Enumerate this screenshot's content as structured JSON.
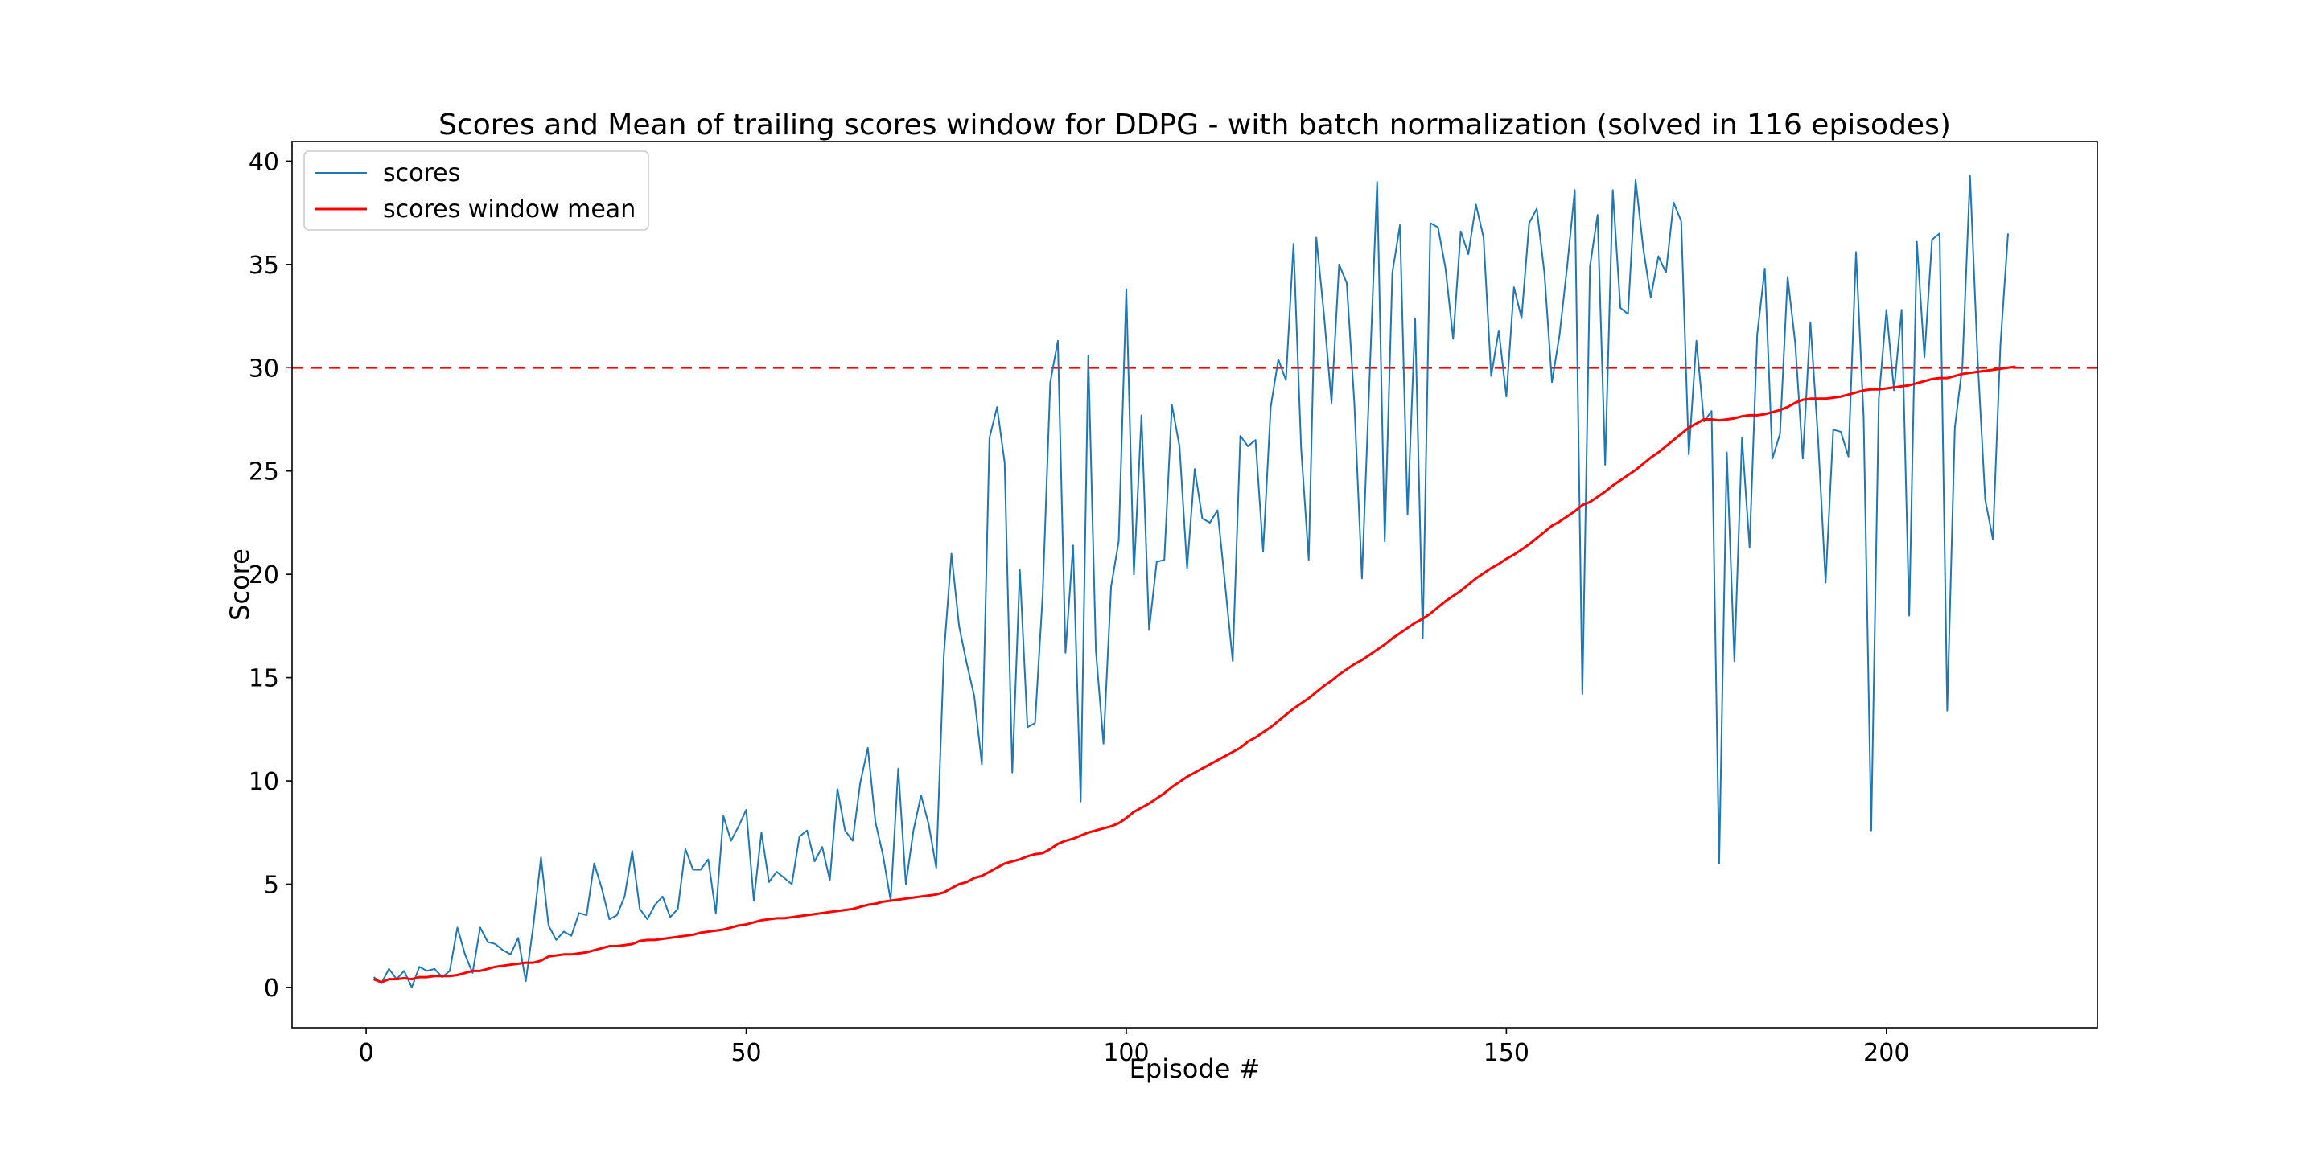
{
  "chart_data": {
    "type": "line",
    "title": "Scores and Mean of trailing scores window for DDPG - with batch normalization (solved in 116 episodes)",
    "xlabel": "Episode #",
    "ylabel": "Score",
    "xlim": [
      -9.75,
      227.75
    ],
    "ylim": [
      -1.95,
      40.95
    ],
    "x_ticks": [
      0,
      50,
      100,
      150,
      200
    ],
    "y_ticks": [
      0,
      5,
      10,
      15,
      20,
      25,
      30,
      35,
      40
    ],
    "grid": false,
    "legend_position": "top-left",
    "threshold": {
      "value": 30,
      "style": "dashed",
      "color": "#ff0000"
    },
    "series": [
      {
        "name": "scores",
        "color": "#1f77b4",
        "x_start": 1,
        "values": [
          0.5,
          0.2,
          0.9,
          0.4,
          0.8,
          0.0,
          1.0,
          0.8,
          0.9,
          0.5,
          0.8,
          2.9,
          1.6,
          0.7,
          2.9,
          2.2,
          2.1,
          1.8,
          1.6,
          2.4,
          0.3,
          3.0,
          6.3,
          3.0,
          2.3,
          2.7,
          2.5,
          3.6,
          3.5,
          6.0,
          4.8,
          3.3,
          3.5,
          4.4,
          6.6,
          3.8,
          3.3,
          4.0,
          4.4,
          3.4,
          3.8,
          6.7,
          5.7,
          5.7,
          6.2,
          3.6,
          8.3,
          7.1,
          7.8,
          8.6,
          4.2,
          7.5,
          5.1,
          5.6,
          5.3,
          5.0,
          7.3,
          7.6,
          6.1,
          6.8,
          5.2,
          9.6,
          7.6,
          7.1,
          9.9,
          11.6,
          8.0,
          6.4,
          4.2,
          10.6,
          5.0,
          7.6,
          9.3,
          7.9,
          5.8,
          16.1,
          21.0,
          17.5,
          15.7,
          14.1,
          10.8,
          26.6,
          28.1,
          25.4,
          10.4,
          20.2,
          12.6,
          12.8,
          19.0,
          29.3,
          31.3,
          16.2,
          21.4,
          9.0,
          30.6,
          16.3,
          11.8,
          19.4,
          21.6,
          33.8,
          20.0,
          27.7,
          17.3,
          20.6,
          20.7,
          28.2,
          26.2,
          20.3,
          25.1,
          22.7,
          22.5,
          23.1,
          19.5,
          15.8,
          26.7,
          26.2,
          26.5,
          21.1,
          28.1,
          30.4,
          29.4,
          36.0,
          26.1,
          20.7,
          36.3,
          32.6,
          28.3,
          35.0,
          34.1,
          28.3,
          19.8,
          29.5,
          39.0,
          21.6,
          34.6,
          36.9,
          22.9,
          32.4,
          16.9,
          37.0,
          36.8,
          34.8,
          31.4,
          36.6,
          35.5,
          37.9,
          36.3,
          29.6,
          31.8,
          28.6,
          33.9,
          32.4,
          37.0,
          37.7,
          34.6,
          29.3,
          31.6,
          34.9,
          38.6,
          14.2,
          34.9,
          37.4,
          25.3,
          38.6,
          32.9,
          32.6,
          39.1,
          35.8,
          33.4,
          35.4,
          34.6,
          38.0,
          37.1,
          25.8,
          31.3,
          27.4,
          27.9,
          6.0,
          25.9,
          15.8,
          26.6,
          21.3,
          31.6,
          34.8,
          25.6,
          26.8,
          34.4,
          31.2,
          25.6,
          32.2,
          26.6,
          19.6,
          27.0,
          26.9,
          25.7,
          35.6,
          27.6,
          7.6,
          28.5,
          32.8,
          28.9,
          32.8,
          18.0,
          36.1,
          30.5,
          36.2,
          36.5,
          13.4,
          27.1,
          30.1,
          39.3,
          30.4,
          23.6,
          21.7,
          31.1,
          36.5
        ]
      },
      {
        "name": "scores window mean",
        "color": "#ff0000",
        "x_start": 1,
        "values": [
          0.4,
          0.25,
          0.4,
          0.4,
          0.45,
          0.4,
          0.5,
          0.5,
          0.55,
          0.55,
          0.55,
          0.6,
          0.7,
          0.8,
          0.8,
          0.9,
          1.0,
          1.05,
          1.1,
          1.15,
          1.2,
          1.2,
          1.3,
          1.5,
          1.55,
          1.6,
          1.6,
          1.65,
          1.7,
          1.8,
          1.9,
          2.0,
          2.0,
          2.05,
          2.1,
          2.25,
          2.3,
          2.3,
          2.35,
          2.4,
          2.45,
          2.5,
          2.55,
          2.65,
          2.7,
          2.75,
          2.8,
          2.9,
          3.0,
          3.05,
          3.15,
          3.25,
          3.3,
          3.35,
          3.35,
          3.4,
          3.45,
          3.5,
          3.55,
          3.6,
          3.65,
          3.7,
          3.75,
          3.8,
          3.9,
          4.0,
          4.05,
          4.15,
          4.2,
          4.25,
          4.3,
          4.35,
          4.4,
          4.45,
          4.5,
          4.6,
          4.8,
          5.0,
          5.1,
          5.3,
          5.4,
          5.6,
          5.8,
          6.0,
          6.1,
          6.2,
          6.35,
          6.45,
          6.5,
          6.7,
          6.95,
          7.1,
          7.2,
          7.35,
          7.5,
          7.6,
          7.7,
          7.8,
          7.95,
          8.2,
          8.5,
          8.7,
          8.9,
          9.15,
          9.4,
          9.7,
          9.95,
          10.2,
          10.4,
          10.6,
          10.8,
          11.0,
          11.2,
          11.4,
          11.6,
          11.9,
          12.1,
          12.35,
          12.6,
          12.9,
          13.2,
          13.5,
          13.75,
          14.0,
          14.3,
          14.6,
          14.85,
          15.15,
          15.4,
          15.65,
          15.85,
          16.1,
          16.35,
          16.6,
          16.9,
          17.15,
          17.4,
          17.65,
          17.85,
          18.1,
          18.4,
          18.7,
          18.95,
          19.2,
          19.5,
          19.8,
          20.05,
          20.3,
          20.5,
          20.75,
          20.95,
          21.2,
          21.45,
          21.75,
          22.05,
          22.35,
          22.55,
          22.8,
          23.05,
          23.35,
          23.5,
          23.75,
          24.0,
          24.3,
          24.55,
          24.8,
          25.05,
          25.35,
          25.65,
          25.9,
          26.2,
          26.5,
          26.8,
          27.1,
          27.3,
          27.5,
          27.5,
          27.45,
          27.5,
          27.55,
          27.65,
          27.7,
          27.7,
          27.75,
          27.85,
          27.95,
          28.1,
          28.3,
          28.45,
          28.5,
          28.5,
          28.5,
          28.55,
          28.6,
          28.7,
          28.8,
          28.9,
          28.95,
          28.95,
          29.0,
          29.05,
          29.1,
          29.15,
          29.25,
          29.35,
          29.45,
          29.5,
          29.5,
          29.6,
          29.7,
          29.75,
          29.8,
          29.85,
          29.9,
          29.95,
          30.0,
          30.05
        ]
      }
    ]
  }
}
